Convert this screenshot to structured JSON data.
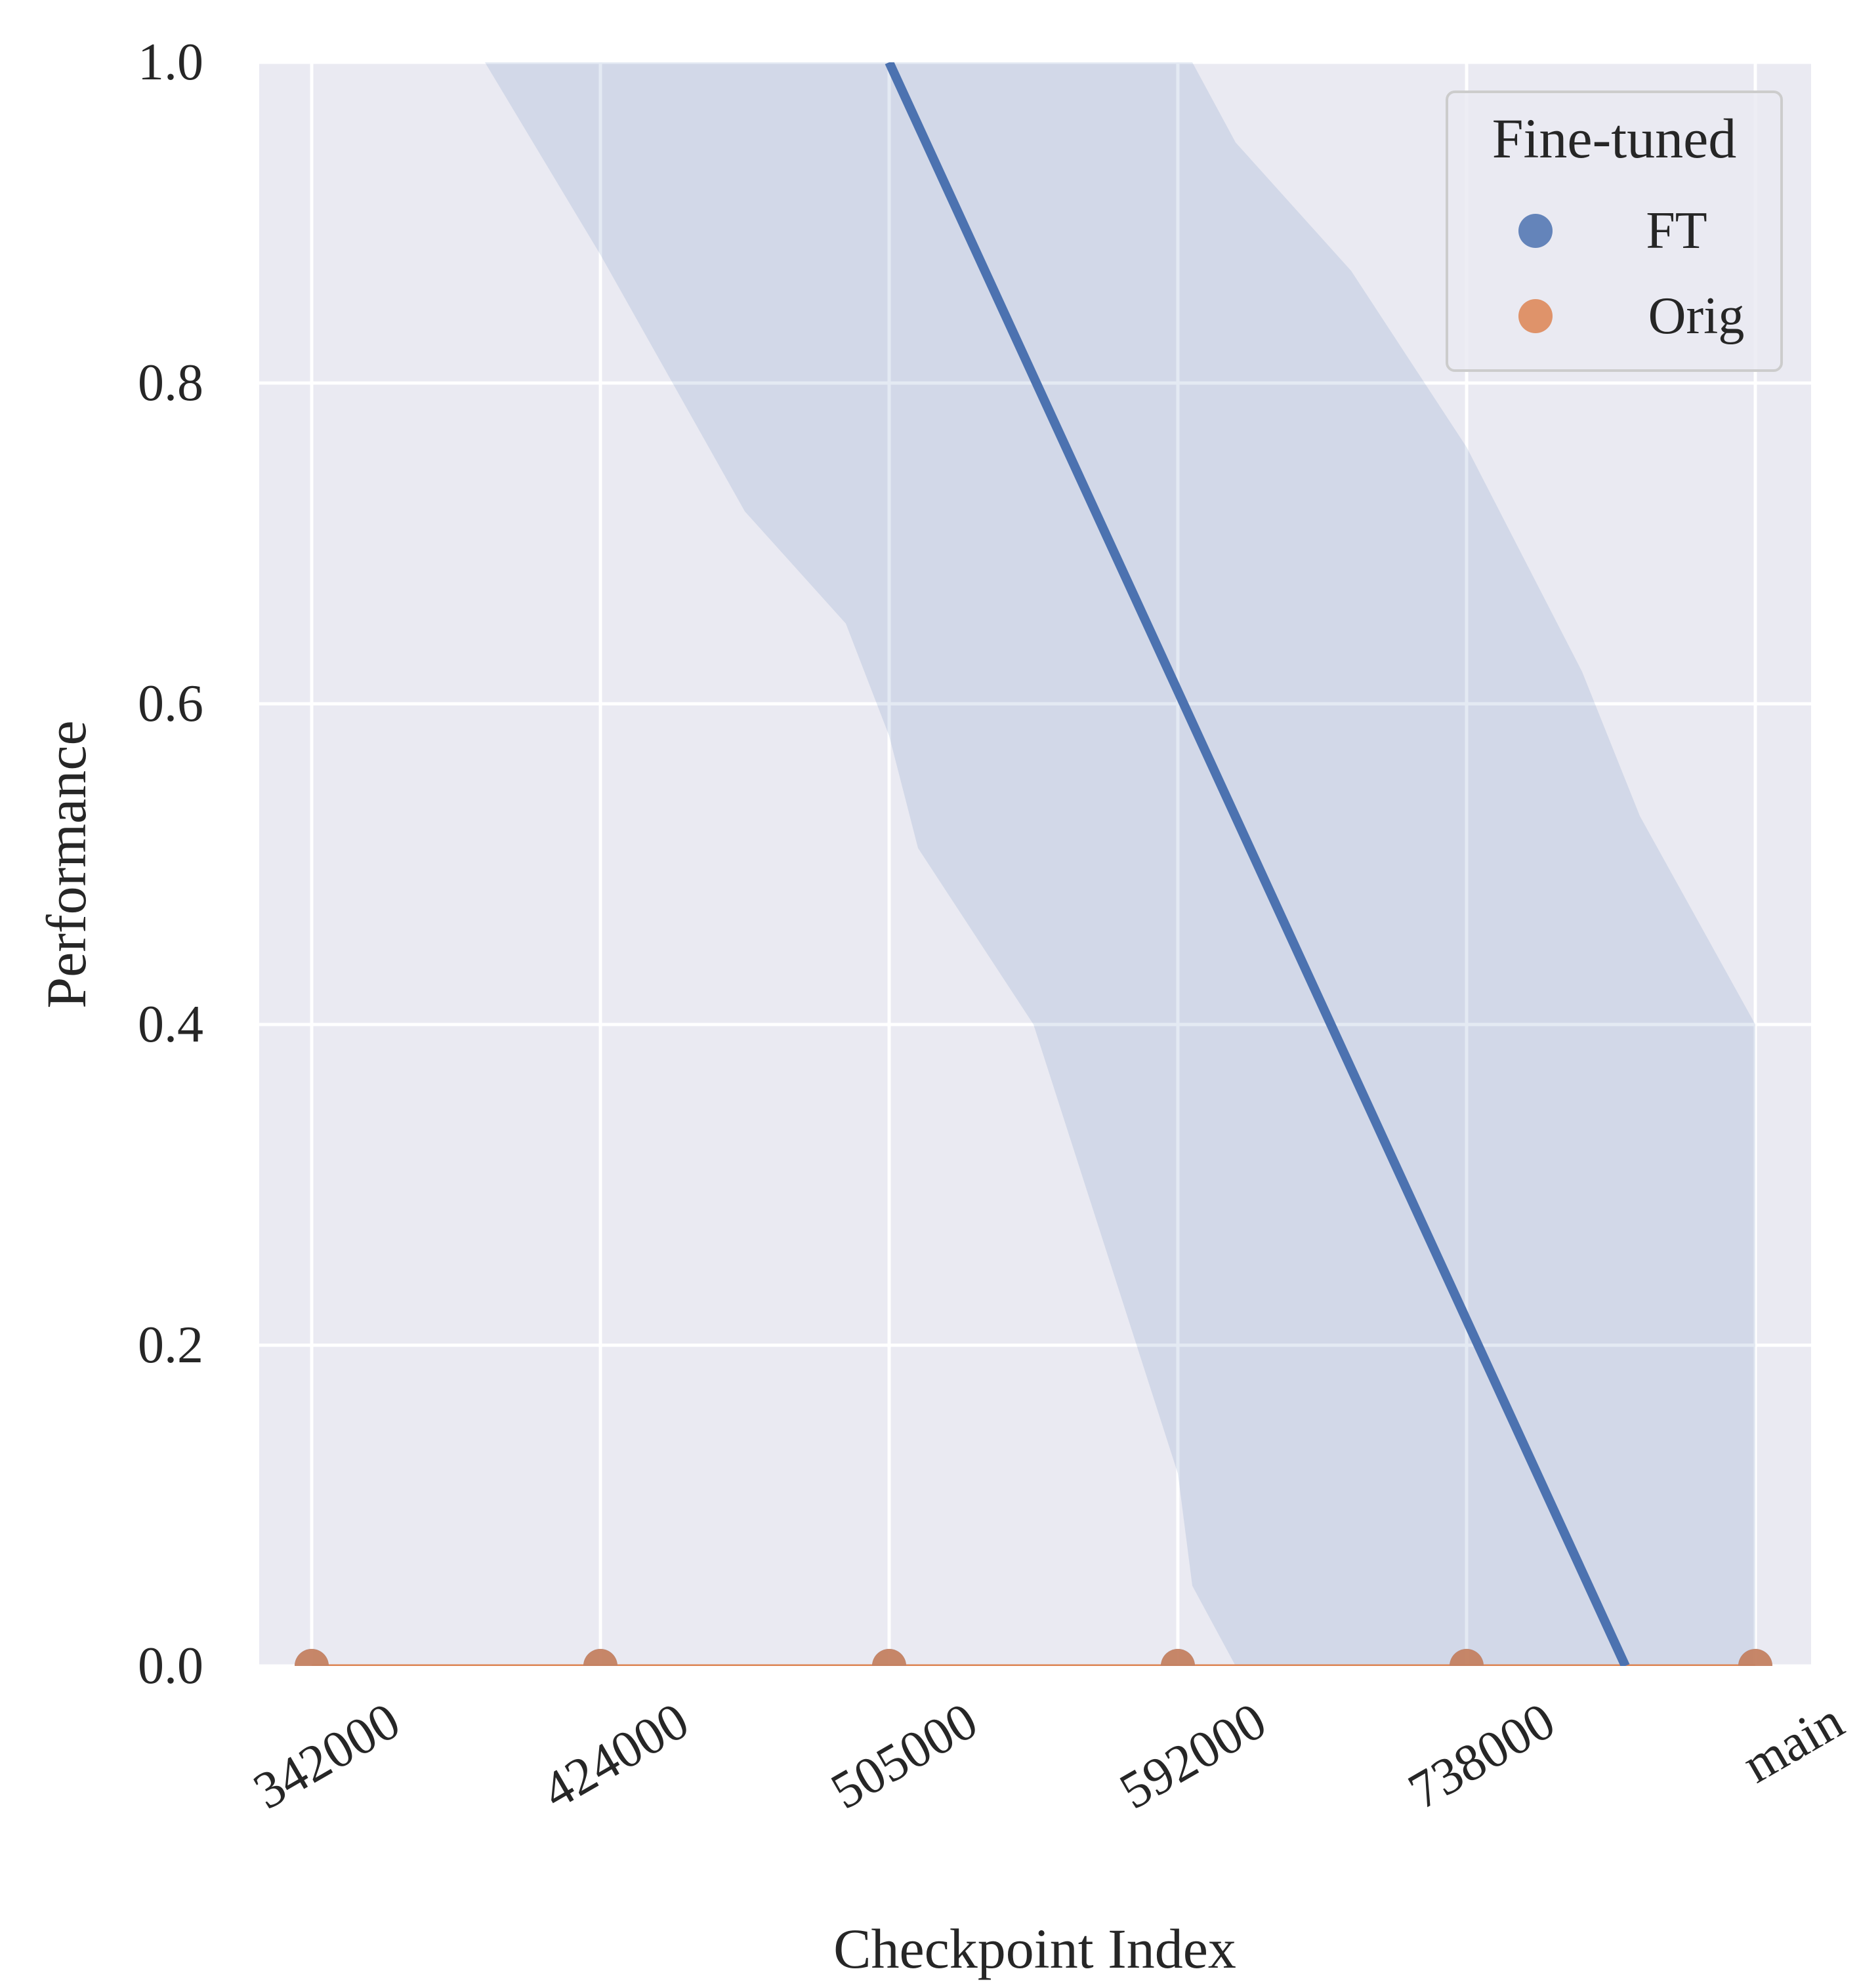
{
  "chart_data": {
    "type": "scatter",
    "xlabel": "Checkpoint Index",
    "ylabel": "Performance",
    "categories": [
      "342000",
      "424000",
      "505000",
      "592000",
      "738000",
      "main"
    ],
    "yticks": [
      "0.0",
      "0.2",
      "0.4",
      "0.6",
      "0.8",
      "1.0"
    ],
    "ylim": [
      0,
      1
    ],
    "grid": true,
    "legend": {
      "title": "Fine-tuned",
      "placement": "top-right",
      "entries": [
        "FT",
        "Orig"
      ]
    },
    "series": [
      {
        "name": "FT",
        "color": "#4c72b0",
        "values": [
          0,
          0,
          0,
          0,
          0,
          0
        ],
        "regression": {
          "x_at_y1": 2,
          "x_at_y0": 4.55
        },
        "confidence_band": {
          "x": [
            0,
            0.6,
            1,
            1.5,
            1.85,
            2,
            2.1,
            2.5,
            3,
            3.05,
            3.2,
            3.6,
            4,
            4.4,
            4.6,
            5
          ],
          "upper": [
            1.4,
            1.1,
            1.0,
            1.0,
            1.0,
            1.0,
            1.0,
            1.0,
            1.0,
            1.0,
            0.95,
            0.87,
            0.76,
            0.62,
            0.53,
            0.4
          ],
          "lower": [
            1.1,
            1.0,
            0.88,
            0.72,
            0.65,
            0.58,
            0.51,
            0.4,
            0.12,
            0.05,
            0.0,
            0.0,
            0.0,
            0.0,
            0.0,
            0.0
          ]
        }
      },
      {
        "name": "Orig",
        "color": "#dd8452",
        "values": [
          0,
          0,
          0,
          0,
          0,
          0
        ]
      }
    ]
  }
}
